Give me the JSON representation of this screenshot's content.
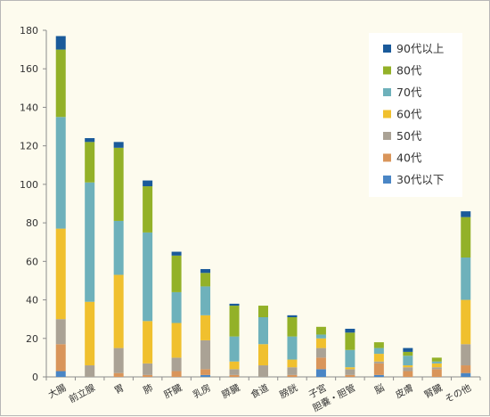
{
  "chart_data": {
    "type": "bar",
    "stacked": true,
    "categories": [
      "大腸",
      "前立腺",
      "胃",
      "肺",
      "肝臓",
      "乳房",
      "膵臓",
      "食道",
      "膀胱",
      "子宮",
      "胆嚢・胆管",
      "脳",
      "皮膚",
      "腎臓",
      "その他"
    ],
    "series": [
      {
        "name": "30代以下",
        "color": "#4a86c5",
        "values": [
          3,
          0,
          0,
          0,
          0,
          1,
          0,
          0,
          0,
          4,
          0,
          1,
          0,
          0,
          2
        ]
      },
      {
        "name": "40代",
        "color": "#d9955a",
        "values": [
          14,
          0,
          2,
          1,
          3,
          3,
          1,
          0,
          1,
          6,
          1,
          6,
          3,
          4,
          4
        ]
      },
      {
        "name": "50代",
        "color": "#aaa295",
        "values": [
          13,
          6,
          13,
          6,
          7,
          15,
          3,
          6,
          4,
          5,
          3,
          1,
          2,
          1,
          11
        ]
      },
      {
        "name": "60代",
        "color": "#f0c02e",
        "values": [
          47,
          33,
          38,
          22,
          18,
          13,
          4,
          11,
          4,
          5,
          1,
          4,
          1,
          2,
          23
        ]
      },
      {
        "name": "70代",
        "color": "#6eb1bb",
        "values": [
          58,
          62,
          28,
          46,
          16,
          15,
          13,
          14,
          12,
          2,
          9,
          3,
          5,
          1,
          22
        ]
      },
      {
        "name": "80代",
        "color": "#93b128",
        "values": [
          35,
          21,
          38,
          24,
          19,
          7,
          16,
          6,
          10,
          4,
          9,
          3,
          2,
          2,
          21
        ]
      },
      {
        "name": "90代以上",
        "color": "#1a5a9a",
        "values": [
          7,
          2,
          3,
          3,
          2,
          2,
          1,
          0,
          1,
          0,
          2,
          0,
          2,
          0,
          3
        ]
      }
    ],
    "yticks": [
      0,
      20,
      40,
      60,
      80,
      100,
      120,
      140,
      160,
      180
    ],
    "ylim": [
      0,
      180
    ],
    "grid": false,
    "legend_position": "top-right",
    "legend_order": [
      "90代以上",
      "80代",
      "70代",
      "60代",
      "50代",
      "40代",
      "30代以下"
    ]
  }
}
